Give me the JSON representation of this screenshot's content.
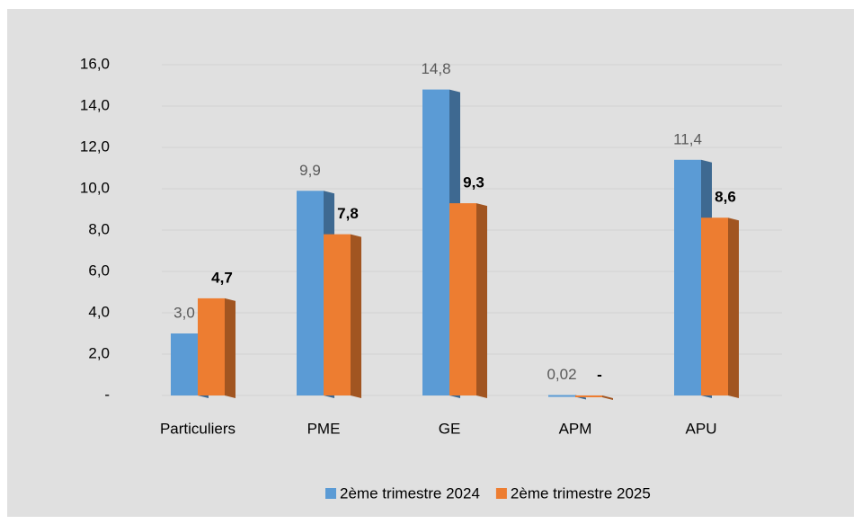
{
  "chart_data": {
    "type": "bar",
    "categories": [
      "Particuliers",
      "PME",
      "GE",
      "APM",
      "APU"
    ],
    "series": [
      {
        "name": "2ème trimestre 2024",
        "color": "#5b9bd5",
        "values": [
          3.0,
          9.9,
          14.8,
          0.02,
          11.4
        ],
        "value_labels": [
          "3,0",
          "9,9",
          "14,8",
          "0,02",
          "11,4"
        ]
      },
      {
        "name": "2ème trimestre 2025",
        "color": "#ed7d31",
        "values": [
          4.7,
          7.8,
          9.3,
          0,
          8.6
        ],
        "value_labels": [
          "4,7",
          "7,8",
          "9,3",
          "-",
          "8,6"
        ]
      }
    ],
    "ylim": [
      0,
      17
    ],
    "yticks": [
      {
        "value": 0,
        "label": "-"
      },
      {
        "value": 2,
        "label": "2,0"
      },
      {
        "value": 4,
        "label": "4,0"
      },
      {
        "value": 6,
        "label": "6,0"
      },
      {
        "value": 8,
        "label": "8,0"
      },
      {
        "value": 10,
        "label": "10,0"
      },
      {
        "value": 12,
        "label": "12,0"
      },
      {
        "value": 14,
        "label": "14,0"
      },
      {
        "value": 16,
        "label": "16,0"
      }
    ],
    "grid": true,
    "legend": "bottom"
  }
}
